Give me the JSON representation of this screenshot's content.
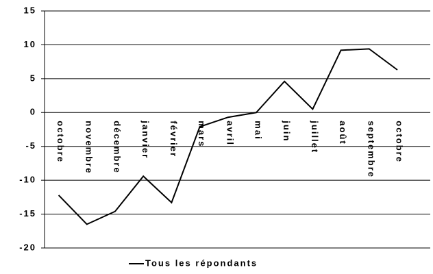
{
  "chart_data": {
    "type": "line",
    "categories": [
      "octobre",
      "novembre",
      "décembre",
      "janvier",
      "février",
      "mars",
      "avril",
      "mai",
      "juin",
      "juillet",
      "août",
      "septembre",
      "octobre"
    ],
    "series": [
      {
        "name": "Tous les répondants",
        "color": "#000000",
        "values": [
          -12.2,
          -16.5,
          -14.6,
          -9.4,
          -13.3,
          -2.1,
          -0.7,
          0,
          4.6,
          0.5,
          9.2,
          9.4,
          6.3
        ]
      }
    ],
    "ylim": [
      -20,
      15
    ],
    "yticks": [
      -20,
      -15,
      -10,
      -5,
      0,
      5,
      10,
      15
    ],
    "grid": true,
    "legend": "bottom"
  }
}
